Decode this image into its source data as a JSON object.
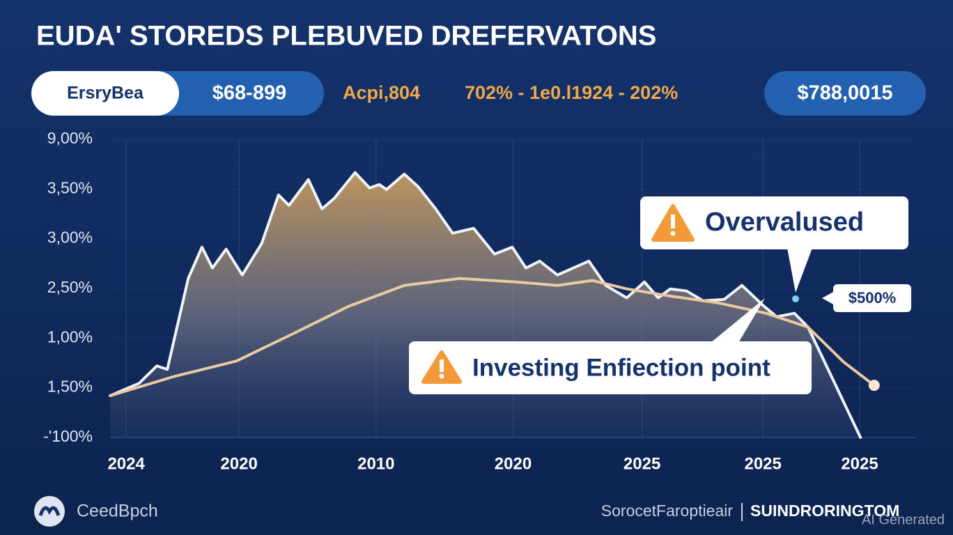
{
  "chart_data": {
    "type": "area-line",
    "title": "EUDA' STOREDS PLEBUVED DREFERVATONS",
    "stats": [
      "ErsryBea",
      "$68-899",
      "Acpi,804",
      "702% - 1e0.l1924 - 202%",
      "$788,0015"
    ],
    "xlim": [
      0,
      100
    ],
    "xticks": [
      {
        "value": 2,
        "label": "2024"
      },
      {
        "value": 16,
        "label": "2020"
      },
      {
        "value": 33,
        "label": "2010"
      },
      {
        "value": 50,
        "label": "2020"
      },
      {
        "value": 66,
        "label": "2025"
      },
      {
        "value": 81,
        "label": "2025"
      },
      {
        "value": 93,
        "label": "2025"
      }
    ],
    "ylim": [
      0,
      6
    ],
    "yticks": [
      {
        "value": 0,
        "label": "-'100%"
      },
      {
        "value": 1,
        "label": "1,50%"
      },
      {
        "value": 2,
        "label": "1,00%"
      },
      {
        "value": 3,
        "label": "2,50%"
      },
      {
        "value": 4,
        "label": "3,00%"
      },
      {
        "value": 5,
        "label": "3,50%"
      },
      {
        "value": 6,
        "label": "9,00%"
      }
    ],
    "grid": true,
    "series": [
      {
        "color": "#eef2fa",
        "fill": "#c89a5e",
        "x": [
          0,
          3.6,
          5.8,
          7.1,
          9.7,
          11.4,
          12.7,
          14.4,
          16.4,
          18.8,
          20.9,
          22.2,
          24.6,
          26.3,
          27.8,
          30.4,
          32.2,
          33.4,
          34.3,
          36.5,
          38.2,
          40.4,
          42.5,
          45.1,
          47.7,
          49.9,
          51.6,
          53.3,
          55.5,
          59.4,
          61.5,
          64.1,
          66.3,
          68,
          69.5,
          71.5,
          73.6,
          76.2,
          78.4,
          81,
          82.7,
          84.9,
          86.6,
          93.1
        ],
        "values": [
          0.84,
          1.09,
          1.44,
          1.37,
          3.2,
          3.83,
          3.41,
          3.79,
          3.27,
          3.9,
          4.88,
          4.67,
          5.19,
          4.6,
          4.81,
          5.33,
          5.02,
          5.09,
          4.99,
          5.3,
          5.05,
          4.6,
          4.11,
          4.21,
          3.69,
          3.83,
          3.41,
          3.55,
          3.27,
          3.55,
          3.06,
          2.81,
          3.13,
          2.81,
          2.99,
          2.95,
          2.75,
          2.78,
          3.06,
          2.66,
          2.43,
          2.5,
          2.22,
          0
        ]
      },
      {
        "color": "#ebcaa0",
        "x": [
          0,
          8,
          15.7,
          22.6,
          29.6,
          36.5,
          43.4,
          50.3,
          55.5,
          59.8,
          64.1,
          69.3,
          75.4,
          81.4,
          86.6,
          91,
          94.8
        ],
        "values": [
          0.84,
          1.23,
          1.54,
          2.08,
          2.64,
          3.06,
          3.2,
          3.13,
          3.06,
          3.16,
          2.99,
          2.85,
          2.71,
          2.5,
          2.22,
          1.52,
          1.05
        ]
      }
    ],
    "annotations": [
      "Overvalused",
      "$500%",
      "Investing Enfiection point"
    ],
    "footer": {
      "brand": "CeedBpch",
      "source": "SorocetFaroptieair",
      "publisher": "SUINDRORINGTOM",
      "watermark": "AI Generated"
    }
  }
}
